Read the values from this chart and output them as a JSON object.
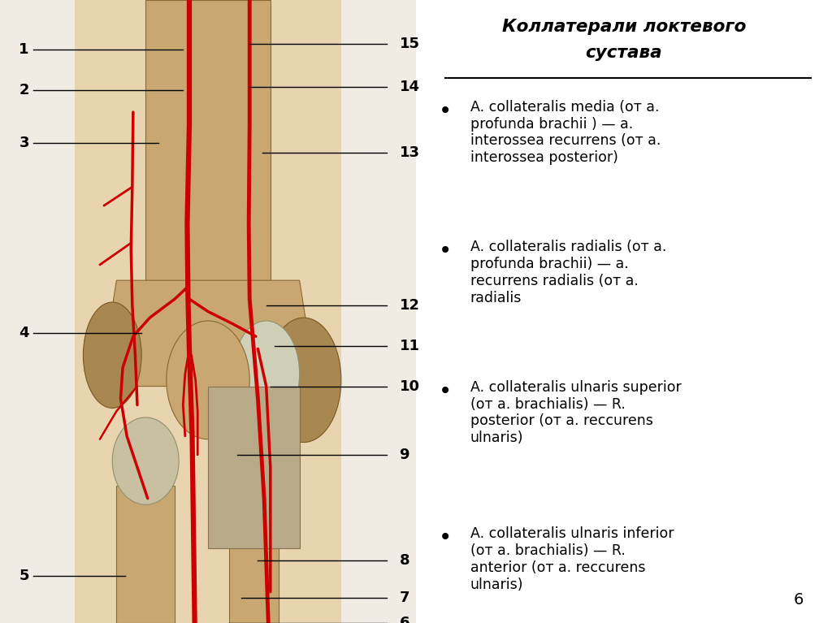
{
  "bg_left": "#f0ece4",
  "bg_right": "#fdf5e0",
  "skin_color": "#e8d5b0",
  "bone_color": "#c8a870",
  "bone_dark": "#a88850",
  "title_line1": "Коллатерали локтевого",
  "title_line2": "сустава",
  "bullet1": "A. collateralis media (от a.\nprofunda brachii ) — a.\ninterossea recurrens (от a.\ninterossea posterior)",
  "bullet2": "A. collateralis radialis (от a.\nprofunda brachii) — a.\nrecurrens radialis (от a.\nradialis",
  "bullet3": "A. collateralis ulnaris superior\n(от a. brachialis) — R.\nposterior (от a. reccurens\nulnaris)",
  "bullet4": "A. collateralis ulnaris inferior\n(от a. brachialis) — R.\nanterior (от a. reccurens\nulnaris)",
  "page_number": "6",
  "artery_color": "#cc0000",
  "label_color": "#000000"
}
